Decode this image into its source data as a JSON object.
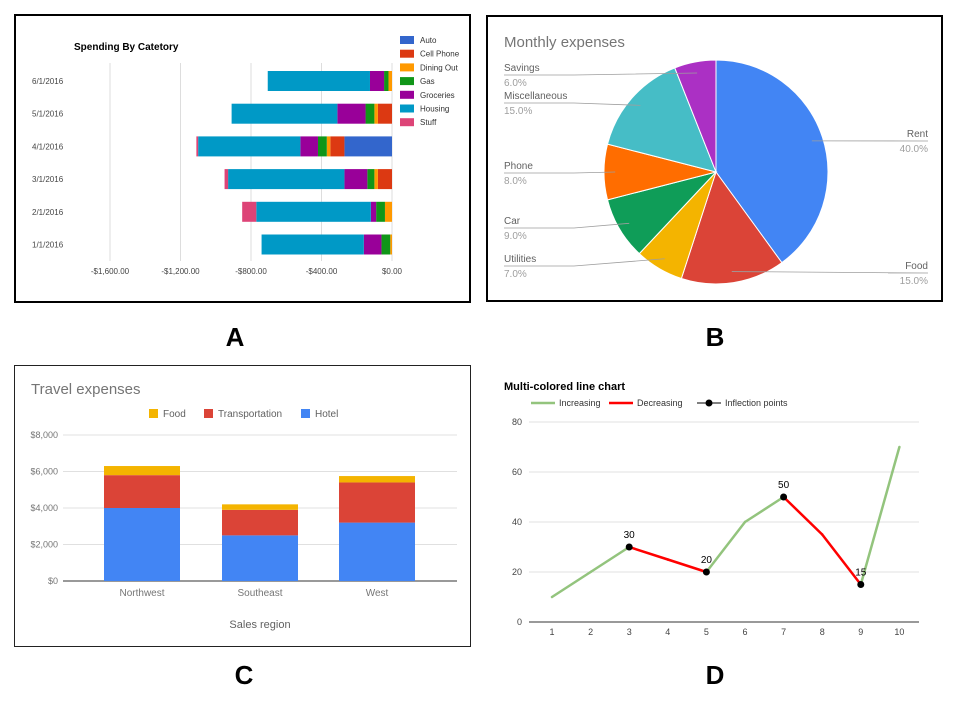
{
  "panel_labels": {
    "a": "A",
    "b": "B",
    "c": "C",
    "d": "D"
  },
  "chart_data": [
    {
      "type": "bar",
      "orientation": "horizontal",
      "stacked": true,
      "title": "Spending By Catetory",
      "categories": [
        "6/1/2016",
        "5/1/2016",
        "4/1/2016",
        "3/1/2016",
        "2/1/2016",
        "1/1/2016"
      ],
      "series": [
        {
          "name": "Auto",
          "color": "#3366cc",
          "values": [
            0,
            0,
            -270,
            0,
            0,
            0
          ]
        },
        {
          "name": "Cell Phone",
          "color": "#dc3912",
          "values": [
            0,
            -80,
            -80,
            -80,
            0,
            0
          ]
        },
        {
          "name": "Dining Out",
          "color": "#ff9900",
          "values": [
            -20,
            -20,
            -20,
            -20,
            -40,
            -10
          ]
        },
        {
          "name": "Gas",
          "color": "#109618",
          "values": [
            -25,
            -50,
            -50,
            -40,
            -50,
            -50
          ]
        },
        {
          "name": "Groceries",
          "color": "#990099",
          "values": [
            -80,
            -160,
            -100,
            -130,
            -30,
            -100
          ]
        },
        {
          "name": "Housing",
          "color": "#0099c6",
          "values": [
            -580,
            -600,
            -580,
            -660,
            -650,
            -580
          ]
        },
        {
          "name": "Stuff",
          "color": "#dd4477",
          "values": [
            0,
            0,
            -10,
            -20,
            -80,
            0
          ]
        }
      ],
      "xlim": [
        -1600,
        0
      ],
      "x_ticks": [
        "-$1,600.00",
        "-$1,200.00",
        "-$800.00",
        "-$400.00",
        "$0.00"
      ],
      "grid": true,
      "legend": "right"
    },
    {
      "type": "pie",
      "title": "Monthly expenses",
      "slices": [
        {
          "label": "Rent",
          "pct": "40.0%",
          "value": 40,
          "color": "#4285f4"
        },
        {
          "label": "Food",
          "pct": "15.0%",
          "value": 15,
          "color": "#db4437"
        },
        {
          "label": "Utilities",
          "pct": "7.0%",
          "value": 7,
          "color": "#f4b400"
        },
        {
          "label": "Car",
          "pct": "9.0%",
          "value": 9,
          "color": "#0f9d58"
        },
        {
          "label": "Phone",
          "pct": "8.0%",
          "value": 8,
          "color": "#ff6d00"
        },
        {
          "label": "Miscellaneous",
          "pct": "15.0%",
          "value": 15,
          "color": "#46bdc6"
        },
        {
          "label": "Savings",
          "pct": "6.0%",
          "value": 6,
          "color": "#ab30c4"
        }
      ],
      "legend": "labels"
    },
    {
      "type": "bar",
      "stacked": true,
      "title": "Travel expenses",
      "xlabel": "Sales region",
      "categories": [
        "Northwest",
        "Southeast",
        "West"
      ],
      "series": [
        {
          "name": "Hotel",
          "color": "#4285f4",
          "values": [
            4000,
            2500,
            3200
          ]
        },
        {
          "name": "Transportation",
          "color": "#db4437",
          "values": [
            1800,
            1400,
            2200
          ]
        },
        {
          "name": "Food",
          "color": "#f4b400",
          "values": [
            500,
            300,
            350
          ]
        }
      ],
      "legend_order": [
        "Food",
        "Transportation",
        "Hotel"
      ],
      "ylim": [
        0,
        8000
      ],
      "y_ticks": [
        "$0",
        "$2,000",
        "$4,000",
        "$6,000",
        "$8,000"
      ],
      "grid": true,
      "legend": "top"
    },
    {
      "type": "line",
      "title": "Multi-colored line chart",
      "x": [
        1,
        2,
        3,
        4,
        5,
        6,
        7,
        8,
        9,
        10
      ],
      "y": [
        10,
        20,
        30,
        25,
        20,
        40,
        50,
        35,
        15,
        70
      ],
      "segment_colors": [
        "increasing",
        "increasing",
        "decreasing",
        "decreasing",
        "increasing",
        "increasing",
        "decreasing",
        "decreasing",
        "increasing"
      ],
      "inflection_points": [
        {
          "x": 3,
          "y": 30,
          "label": "30"
        },
        {
          "x": 5,
          "y": 20,
          "label": "20"
        },
        {
          "x": 7,
          "y": 50,
          "label": "50"
        },
        {
          "x": 9,
          "y": 15,
          "label": "15"
        }
      ],
      "legend_entries": [
        {
          "key": "increasing",
          "name": "Increasing",
          "color": "#93c47d"
        },
        {
          "key": "decreasing",
          "name": "Decreasing",
          "color": "#ff0000"
        },
        {
          "key": "inflection",
          "name": "Inflection points",
          "color": "#000000"
        }
      ],
      "ylim": [
        0,
        80
      ],
      "y_ticks": [
        0,
        20,
        40,
        60,
        80
      ],
      "x_ticks": [
        1,
        2,
        3,
        4,
        5,
        6,
        7,
        8,
        9,
        10
      ],
      "grid": true,
      "legend": "top"
    }
  ]
}
